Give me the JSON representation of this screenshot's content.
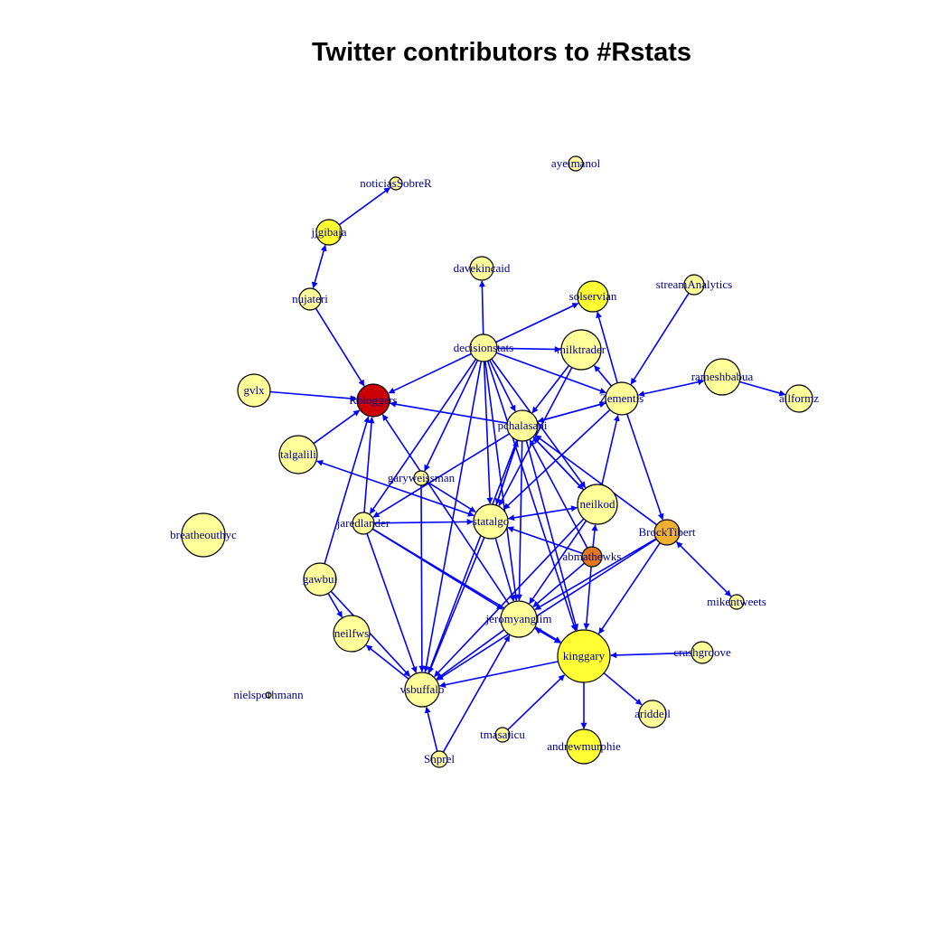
{
  "title": "Twitter contributors to #Rstats",
  "colors": {
    "edge": "#0000ff",
    "label": "#00008b",
    "node_pale": "#ffff99",
    "node_bright": "#ffff33",
    "node_orange": "#f0b030",
    "node_dark_orange": "#e07820",
    "node_red": "#cc0000"
  },
  "nodes": [
    {
      "id": "ayeimanol",
      "label": "ayeimanol"
    },
    {
      "id": "noticiasSobreR",
      "label": "noticiasSobreR"
    },
    {
      "id": "jjgibaja",
      "label": "jjgibaja"
    },
    {
      "id": "davekincaid",
      "label": "davekincaid"
    },
    {
      "id": "streamAnalytics",
      "label": "streamAnalytics"
    },
    {
      "id": "nujateri",
      "label": "nujateri"
    },
    {
      "id": "solservian",
      "label": "solservian"
    },
    {
      "id": "decisionstats",
      "label": "decisionstats"
    },
    {
      "id": "milktrader",
      "label": "milktrader"
    },
    {
      "id": "rameshbabua",
      "label": "rameshbabua"
    },
    {
      "id": "gvlx",
      "label": "gvlx"
    },
    {
      "id": "Rbloggers",
      "label": "Rbloggers"
    },
    {
      "id": "Zementis",
      "label": "Zementis"
    },
    {
      "id": "allformz",
      "label": "allformz"
    },
    {
      "id": "pchalasani",
      "label": "pchalasani"
    },
    {
      "id": "talgalili",
      "label": "talgalili"
    },
    {
      "id": "garyweissman",
      "label": "garyweissman"
    },
    {
      "id": "neilkod",
      "label": "neilkod"
    },
    {
      "id": "breatheouthyc",
      "label": "breatheouthyc"
    },
    {
      "id": "jaredlander",
      "label": "jaredlander"
    },
    {
      "id": "statalgo",
      "label": "statalgo"
    },
    {
      "id": "BrockTibert",
      "label": "BrockTibert"
    },
    {
      "id": "abmathewks",
      "label": "abmathewks"
    },
    {
      "id": "gawbul",
      "label": "gawbul"
    },
    {
      "id": "mikentweets",
      "label": "mikentweets"
    },
    {
      "id": "jeromyanglim",
      "label": "jeromyanglim"
    },
    {
      "id": "neilfws",
      "label": "neilfws"
    },
    {
      "id": "crashgroove",
      "label": "crashgroove"
    },
    {
      "id": "kinggary",
      "label": "kinggary"
    },
    {
      "id": "nielsporhmann",
      "label": "nielsporhmann"
    },
    {
      "id": "vsbuffalo",
      "label": "vsbuffalo"
    },
    {
      "id": "ariddell",
      "label": "ariddell"
    },
    {
      "id": "tmasaticu",
      "label": "tmasaticu"
    },
    {
      "id": "andrewmurphie",
      "label": "andrewmurphie"
    },
    {
      "id": "Shprel",
      "label": "Shprel"
    }
  ]
}
